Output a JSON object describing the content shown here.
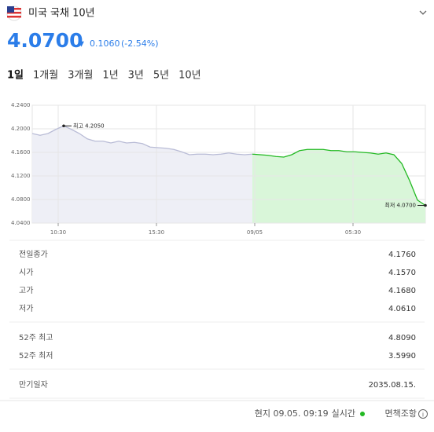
{
  "header": {
    "title": "미국 국채 10년",
    "price": "4.0700",
    "change_arrow": "▼",
    "change": "0.1060",
    "change_pct": "(-2.54%)"
  },
  "tabs": [
    "1일",
    "1개월",
    "3개월",
    "1년",
    "3년",
    "5년",
    "10년"
  ],
  "chart_data": {
    "type": "line",
    "xlim": [
      0,
      50
    ],
    "xticks": [
      {
        "value": 3.3,
        "label": "10:30"
      },
      {
        "value": 15.8,
        "label": "15:30"
      },
      {
        "value": 28.3,
        "label": "09/05"
      },
      {
        "value": 40.8,
        "label": "05:30"
      }
    ],
    "ylim": [
      4.04,
      4.24
    ],
    "yticks": [
      {
        "value": 4.24,
        "label": "4.2400"
      },
      {
        "value": 4.2,
        "label": "4.2000"
      },
      {
        "value": 4.16,
        "label": "4.1600"
      },
      {
        "value": 4.12,
        "label": "4.1200"
      },
      {
        "value": 4.08,
        "label": "4.0800"
      },
      {
        "value": 4.04,
        "label": "4.0400"
      }
    ],
    "grid": true,
    "series": [
      {
        "color": "#b9bcd6",
        "fill": "#eeeff6",
        "x": [
          0,
          1,
          2,
          3,
          4,
          5,
          6,
          7,
          8,
          9,
          10,
          11,
          12,
          13,
          14,
          15,
          16,
          17,
          18,
          19,
          20,
          21,
          22,
          23,
          24,
          25,
          26,
          27,
          28
        ],
        "values": [
          4.192,
          4.189,
          4.192,
          4.199,
          4.205,
          4.199,
          4.192,
          4.183,
          4.179,
          4.179,
          4.176,
          4.179,
          4.176,
          4.177,
          4.175,
          4.169,
          4.168,
          4.167,
          4.165,
          4.161,
          4.156,
          4.157,
          4.157,
          4.156,
          4.157,
          4.159,
          4.157,
          4.156,
          4.157
        ]
      },
      {
        "color": "#22b922",
        "fill": "#d9f6d9",
        "x": [
          28,
          29,
          30,
          31,
          32,
          33,
          34,
          35,
          36,
          37,
          38,
          39,
          40,
          41,
          42,
          43,
          44,
          45,
          46,
          47,
          48,
          49,
          50
        ],
        "values": [
          4.157,
          4.156,
          4.155,
          4.153,
          4.152,
          4.156,
          4.163,
          4.165,
          4.165,
          4.165,
          4.163,
          4.163,
          4.161,
          4.161,
          4.16,
          4.159,
          4.157,
          4.159,
          4.156,
          4.141,
          4.112,
          4.079,
          4.07
        ]
      }
    ],
    "annotations": {
      "high": "최고 4.2050",
      "low": "최저 4.0700"
    }
  },
  "table": {
    "groups": [
      [
        [
          "전일종가",
          "4.1760"
        ],
        [
          "시가",
          "4.1570"
        ],
        [
          "고가",
          "4.1680"
        ],
        [
          "저가",
          "4.0610"
        ]
      ],
      [
        [
          "52주 최고",
          "4.8090"
        ],
        [
          "52주 최저",
          "3.5990"
        ]
      ],
      [
        [
          "만기일자",
          "2035.08.15."
        ]
      ]
    ]
  },
  "footer": {
    "time": "현지 09.05. 09:19",
    "realtime": "실시간",
    "disclaimer": "면책조항"
  }
}
